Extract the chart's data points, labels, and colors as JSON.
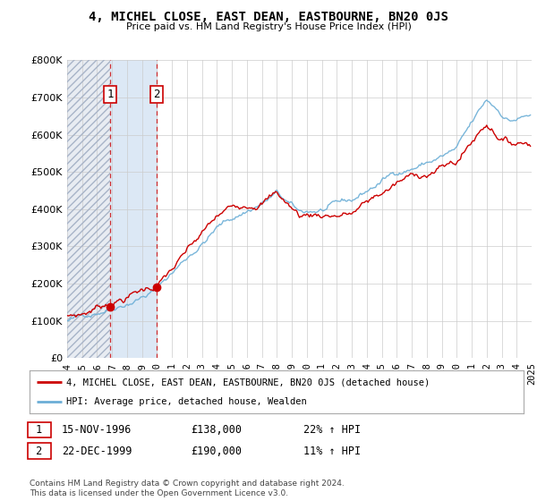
{
  "title": "4, MICHEL CLOSE, EAST DEAN, EASTBOURNE, BN20 0JS",
  "subtitle": "Price paid vs. HM Land Registry's House Price Index (HPI)",
  "legend_line1": "4, MICHEL CLOSE, EAST DEAN, EASTBOURNE, BN20 0JS (detached house)",
  "legend_line2": "HPI: Average price, detached house, Wealden",
  "sale1_date": "15-NOV-1996",
  "sale1_price": "£138,000",
  "sale1_hpi": "22% ↑ HPI",
  "sale2_date": "22-DEC-1999",
  "sale2_price": "£190,000",
  "sale2_hpi": "11% ↑ HPI",
  "footer": "Contains HM Land Registry data © Crown copyright and database right 2024.\nThis data is licensed under the Open Government Licence v3.0.",
  "hpi_color": "#6baed6",
  "price_color": "#cc0000",
  "sale_marker_color": "#cc0000",
  "hatch_color": "#c0c8d8",
  "shade_between_color": "#dce8f5",
  "ylim": [
    0,
    800000
  ],
  "yticks": [
    0,
    100000,
    200000,
    300000,
    400000,
    500000,
    600000,
    700000,
    800000
  ],
  "x_start_year": 1994,
  "x_end_year": 2025,
  "sale1_year": 1996.88,
  "sale2_year": 1999.97,
  "sale1_value": 138000,
  "sale2_value": 190000,
  "background_color": "#ffffff",
  "grid_color": "#cccccc"
}
